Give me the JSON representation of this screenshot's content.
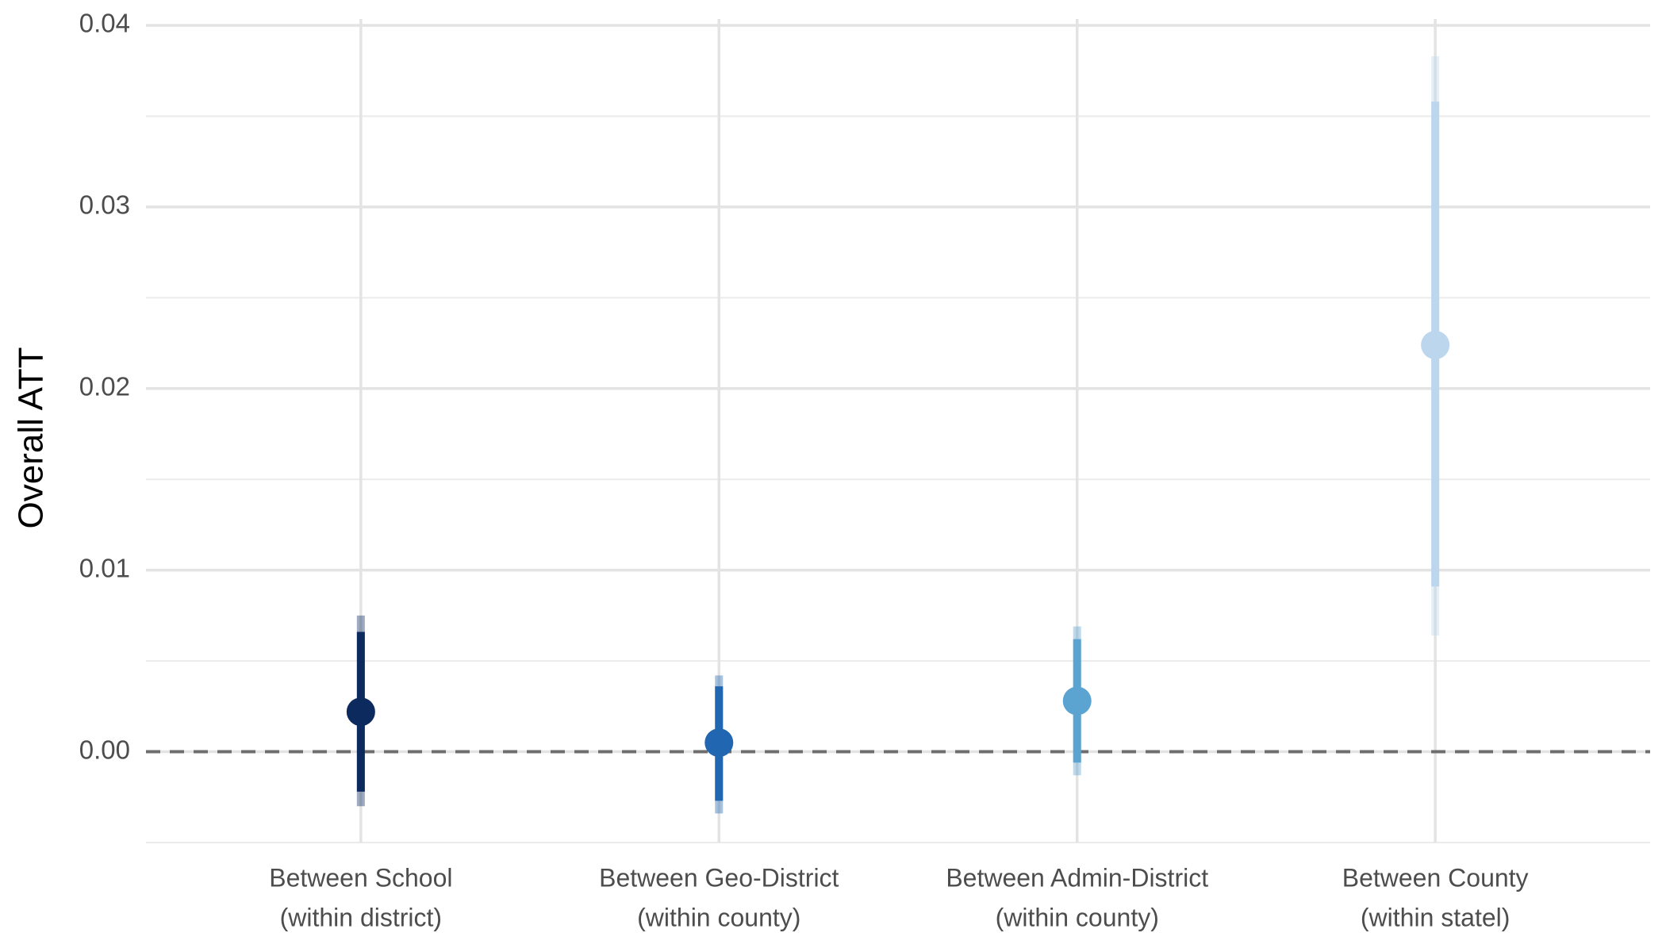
{
  "chart_data": {
    "type": "pointrange",
    "ylabel": "Overall ATT",
    "categories": [
      [
        "Between School",
        "(within district)"
      ],
      [
        "Between Geo-District",
        "(within county)"
      ],
      [
        "Between Admin-District",
        "(within county)"
      ],
      [
        "Between County",
        "(within statel)"
      ]
    ],
    "estimates": [
      0.0022,
      0.0005,
      0.0028,
      0.0224
    ],
    "inner_lower": [
      -0.0022,
      -0.0027,
      -0.0006,
      0.0091
    ],
    "inner_upper": [
      0.0066,
      0.0036,
      0.0062,
      0.0358
    ],
    "outer_lower": [
      -0.003,
      -0.0034,
      -0.0013,
      0.0064
    ],
    "outer_upper": [
      0.0075,
      0.0042,
      0.0069,
      0.0383
    ],
    "colors": [
      "#0d2a5f",
      "#2166b0",
      "#5ba3d0",
      "#bcd6ee"
    ],
    "ylim": [
      -0.005,
      0.04
    ],
    "yticks": [
      {
        "value": 0,
        "label": "0.00"
      },
      {
        "value": 0.01,
        "label": "0.01"
      },
      {
        "value": 0.02,
        "label": "0.02"
      },
      {
        "value": 0.03,
        "label": "0.03"
      },
      {
        "value": 0.04,
        "label": "0.04"
      }
    ],
    "minor_yticks": [
      -0.005,
      0.005,
      0.015,
      0.025,
      0.035
    ],
    "reference_line": 0,
    "grid": true
  }
}
